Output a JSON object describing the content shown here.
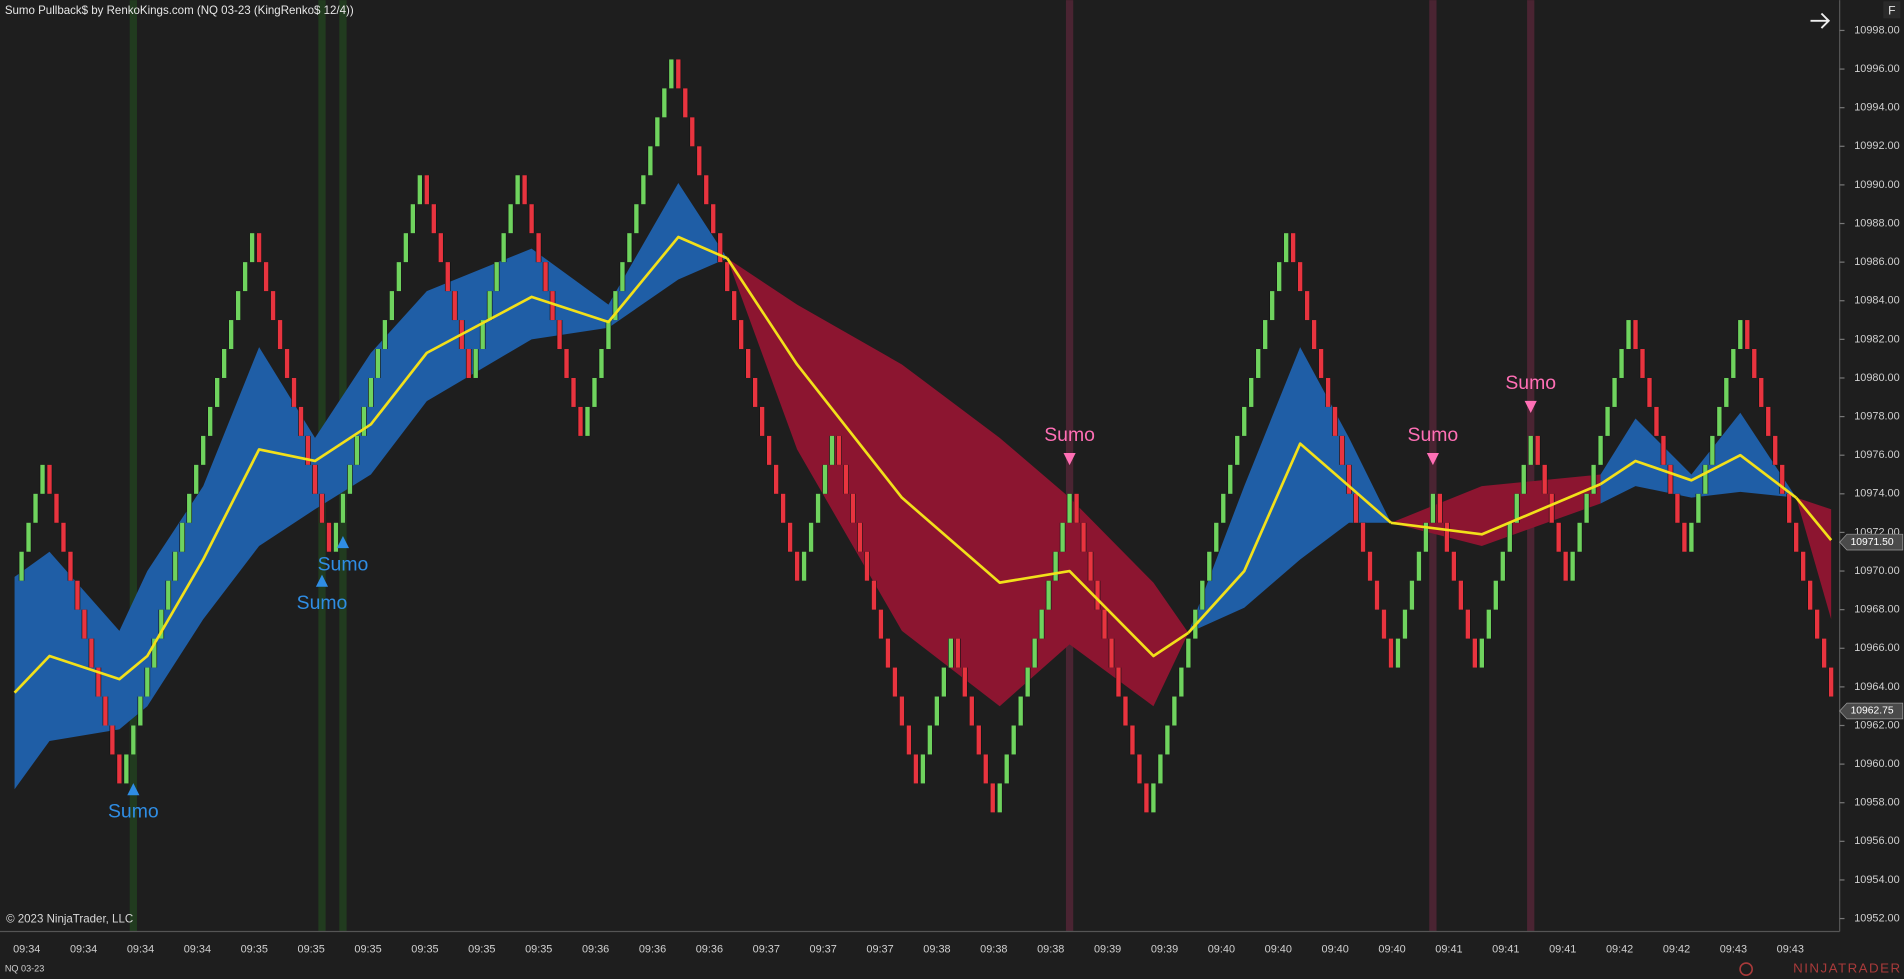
{
  "chart_data": {
    "type": "renko",
    "title": "Sumo Pullback$ by RenkoKings.com (NQ 03-23 (KingRenko$ 12/4))",
    "copyright": "© 2023 NinjaTrader, LLC",
    "instrument": "NQ 03-23",
    "logo": "NINJATRADER",
    "corner_button": "F",
    "up_color": "#6fd35e",
    "down_color": "#e8343f",
    "ma_color": "#f2e01a",
    "close": [
      10969.5,
      10971,
      10972.5,
      10974,
      10975.5,
      10974,
      10972.5,
      10971,
      10969.5,
      10968,
      10966.5,
      10965,
      10963.5,
      10962,
      10960.5,
      10959,
      10960.5,
      10962,
      10963.5,
      10965,
      10966.5,
      10968,
      10969.5,
      10971,
      10972.5,
      10974,
      10975.5,
      10977,
      10978.5,
      10980,
      10981.5,
      10983,
      10984.5,
      10986,
      10987.5,
      10986,
      10984.5,
      10983,
      10981.5,
      10980,
      10978.5,
      10977,
      10975.5,
      10974,
      10972.5,
      10971,
      10972.5,
      10974,
      10975.5,
      10977,
      10978.5,
      10980,
      10981.5,
      10983,
      10984.5,
      10986,
      10987.5,
      10989,
      10990.5,
      10989,
      10987.5,
      10986,
      10984.5,
      10983,
      10981.5,
      10980,
      10981.5,
      10983,
      10984.5,
      10986,
      10987.5,
      10989,
      10990.5,
      10989,
      10987.5,
      10986,
      10984.5,
      10983,
      10981.5,
      10980,
      10978.5,
      10977,
      10978.5,
      10980,
      10981.5,
      10983,
      10984.5,
      10986,
      10987.5,
      10989,
      10990.5,
      10992,
      10993.5,
      10995,
      10996.5,
      10995,
      10993.5,
      10992,
      10990.5,
      10989,
      10987.5,
      10986,
      10984.5,
      10983,
      10981.5,
      10980,
      10978.5,
      10977,
      10975.5,
      10974,
      10972.5,
      10971,
      10969.5,
      10971,
      10972.5,
      10974,
      10975.5,
      10977,
      10975.5,
      10974,
      10972.5,
      10971,
      10969.5,
      10968,
      10966.5,
      10965,
      10963.5,
      10962,
      10960.5,
      10959,
      10960.5,
      10962,
      10963.5,
      10965,
      10966.5,
      10965,
      10963.5,
      10962,
      10960.5,
      10959,
      10957.5,
      10959,
      10960.5,
      10962,
      10963.5,
      10965,
      10966.5,
      10968,
      10969.5,
      10971,
      10972.5,
      10974,
      10972.5,
      10971,
      10969.5,
      10968,
      10966.5,
      10965,
      10963.5,
      10962,
      10960.5,
      10959,
      10957.5,
      10959,
      10960.5,
      10962,
      10963.5,
      10965,
      10966.5,
      10968,
      10969.5,
      10971,
      10972.5,
      10974,
      10975.5,
      10977,
      10978.5,
      10980,
      10981.5,
      10983,
      10984.5,
      10986,
      10987.5,
      10986,
      10984.5,
      10983,
      10981.5,
      10980,
      10978.5,
      10977,
      10975.5,
      10974,
      10972.5,
      10971,
      10969.5,
      10968,
      10966.5,
      10965,
      10966.5,
      10968,
      10969.5,
      10971,
      10972.5,
      10974,
      10972.5,
      10971,
      10969.5,
      10968,
      10966.5,
      10965,
      10966.5,
      10968,
      10969.5,
      10971,
      10972.5,
      10974,
      10975.5,
      10977,
      10975.5,
      10974,
      10972.5,
      10971,
      10969.5,
      10971,
      10972.5,
      10974,
      10975.5,
      10977,
      10978.5,
      10980,
      10981.5,
      10983,
      10981.5,
      10980,
      10978.5,
      10977,
      10975.5,
      10974,
      10972.5,
      10971,
      10972.5,
      10974,
      10975.5,
      10977,
      10978.5,
      10980,
      10981.5,
      10983,
      10981.5,
      10980,
      10978.5,
      10977,
      10975.5,
      10974,
      10972.5,
      10971,
      10969.5,
      10968,
      10966.5,
      10965,
      10963.5
    ],
    "bands": [
      {
        "color": "#1f5ea6",
        "x": [
          0,
          5,
          15,
          19,
          27,
          35,
          43,
          51,
          59,
          74,
          85,
          95,
          102
        ],
        "upper": [
          10969.7,
          10971,
          10966.9,
          10970,
          10974.4,
          10981.6,
          10976.9,
          10981.3,
          10984.5,
          10986.7,
          10983.8,
          10990.1,
          10986.2
        ],
        "lower": [
          10958.7,
          10961.2,
          10961.8,
          10963,
          10967.5,
          10971.3,
          10973.2,
          10975,
          10978.8,
          10982,
          10982.6,
          10985.1,
          10986.2
        ],
        "ma": [
          10963.7,
          10965.6,
          10964.4,
          10965.6,
          10970.6,
          10976.3,
          10975.7,
          10977.6,
          10981.3,
          10984.2,
          10982.9,
          10987.3,
          10986.2
        ]
      },
      {
        "color": "#8c1530",
        "x": [
          102,
          112,
          127,
          141,
          151,
          163,
          168
        ],
        "upper": [
          10986.2,
          10983.8,
          10980.7,
          10976.9,
          10973.8,
          10969.4,
          10966.8
        ],
        "lower": [
          10986.2,
          10976.3,
          10966.9,
          10963,
          10966.2,
          10963,
          10966.8
        ],
        "ma": [
          10986.2,
          10980.7,
          10973.8,
          10969.4,
          10970,
          10965.6,
          10966.8
        ]
      },
      {
        "color": "#1f5ea6",
        "x": [
          168,
          176,
          184,
          191,
          197
        ],
        "upper": [
          10966.8,
          10974.4,
          10981.6,
          10976.9,
          10972.5
        ],
        "lower": [
          10966.8,
          10968.1,
          10970.6,
          10972.5,
          10972.5
        ],
        "ma": [
          10966.8,
          10970,
          10976.6,
          10974.4,
          10972.5
        ]
      },
      {
        "color": "#8c1530",
        "x": [
          197,
          210,
          227
        ],
        "upper": [
          10972.5,
          10974.4,
          10975
        ],
        "lower": [
          10972.5,
          10971.3,
          10973.5
        ],
        "ma": [
          10972.5,
          10971.9,
          10974.5
        ]
      },
      {
        "color": "#1f5ea6",
        "x": [
          227,
          232,
          240,
          247,
          255
        ],
        "upper": [
          10975,
          10977.9,
          10975,
          10978.2,
          10973.8
        ],
        "lower": [
          10973.5,
          10974.4,
          10973.8,
          10974.1,
          10973.8
        ],
        "ma": [
          10974.5,
          10975.7,
          10974.7,
          10976,
          10973.8
        ]
      },
      {
        "color": "#8c1530",
        "x": [
          255,
          260
        ],
        "upper": [
          10973.8,
          10973.2
        ],
        "lower": [
          10973.8,
          10967.5
        ],
        "ma": [
          10973.8,
          10971.6
        ]
      }
    ],
    "signals": [
      {
        "index": 17,
        "direction": "up",
        "price": 10958.7,
        "label": "Sumo",
        "color": "#2f8de4",
        "highlight": "#213b1f"
      },
      {
        "index": 44,
        "direction": "up",
        "price": 10969.5,
        "label": "Sumo",
        "color": "#2f8de4",
        "highlight": "#213b1f"
      },
      {
        "index": 47,
        "direction": "up",
        "price": 10971.5,
        "label": "Sumo",
        "color": "#2f8de4",
        "highlight": "#213b1f"
      },
      {
        "index": 151,
        "direction": "down",
        "price": 10975.8,
        "label": "Sumo",
        "color": "#ff6fb5",
        "highlight": "#4a2432"
      },
      {
        "index": 203,
        "direction": "down",
        "price": 10975.8,
        "label": "Sumo",
        "color": "#ff6fb5",
        "highlight": "#4a2432"
      },
      {
        "index": 217,
        "direction": "down",
        "price": 10978.5,
        "label": "Sumo",
        "color": "#ff6fb5",
        "highlight": "#4a2432"
      }
    ],
    "ylim": [
      10951.33,
      10999.57
    ],
    "yticks": [
      {
        "value": 10952,
        "label": "10952.00"
      },
      {
        "value": 10954,
        "label": "10954.00"
      },
      {
        "value": 10956,
        "label": "10956.00"
      },
      {
        "value": 10958,
        "label": "10958.00"
      },
      {
        "value": 10960,
        "label": "10960.00"
      },
      {
        "value": 10962,
        "label": "10962.00"
      },
      {
        "value": 10964,
        "label": "10964.00"
      },
      {
        "value": 10966,
        "label": "10966.00"
      },
      {
        "value": 10968,
        "label": "10968.00"
      },
      {
        "value": 10970,
        "label": "10970.00"
      },
      {
        "value": 10972,
        "label": "10972.00"
      },
      {
        "value": 10974,
        "label": "10974.00"
      },
      {
        "value": 10976,
        "label": "10976.00"
      },
      {
        "value": 10978,
        "label": "10978.00"
      },
      {
        "value": 10980,
        "label": "10980.00"
      },
      {
        "value": 10982,
        "label": "10982.00"
      },
      {
        "value": 10984,
        "label": "10984.00"
      },
      {
        "value": 10986,
        "label": "10986.00"
      },
      {
        "value": 10988,
        "label": "10988.00"
      },
      {
        "value": 10990,
        "label": "10990.00"
      },
      {
        "value": 10992,
        "label": "10992.00"
      },
      {
        "value": 10994,
        "label": "10994.00"
      },
      {
        "value": 10996,
        "label": "10996.00"
      },
      {
        "value": 10998,
        "label": "10998.00"
      }
    ],
    "price_markers": [
      {
        "value": 10971.5,
        "label": "10971.50"
      },
      {
        "value": 10962.75,
        "label": "10962.75"
      }
    ],
    "time_labels": [
      "09:34",
      "09:34",
      "09:34",
      "09:34",
      "09:35",
      "09:35",
      "09:35",
      "09:35",
      "09:35",
      "09:35",
      "09:36",
      "09:36",
      "09:36",
      "09:37",
      "09:37",
      "09:37",
      "09:38",
      "09:38",
      "09:38",
      "09:39",
      "09:39",
      "09:40",
      "09:40",
      "09:40",
      "09:40",
      "09:41",
      "09:41",
      "09:41",
      "09:42",
      "09:42",
      "09:43",
      "09:43"
    ]
  }
}
